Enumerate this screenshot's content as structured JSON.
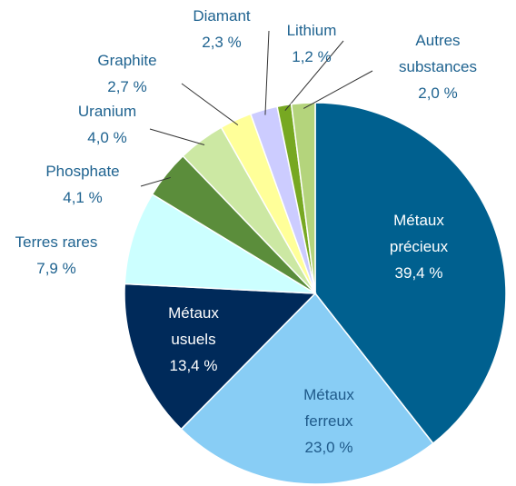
{
  "chart_data": {
    "type": "pie",
    "categories": [
      "Métaux précieux",
      "Métaux ferreux",
      "Métaux usuels",
      "Terres rares",
      "Phosphate",
      "Uranium",
      "Graphite",
      "Diamant",
      "Lithium",
      "Autres substances"
    ],
    "values": [
      39.4,
      23.0,
      13.4,
      7.9,
      4.1,
      4.0,
      2.7,
      2.3,
      1.2,
      2.0
    ],
    "value_labels": [
      "39,4 %",
      "23,0 %",
      "13,4 %",
      "7,9 %",
      "4,1 %",
      "4,0 %",
      "2,7 %",
      "2,3 %",
      "1,2 %",
      "2,0 %"
    ],
    "colors": [
      "#00608f",
      "#88cdf5",
      "#002a5a",
      "#ccffff",
      "#5b8d3b",
      "#cce8a3",
      "#ffff99",
      "#ccccff",
      "#77a822",
      "#b4d47c"
    ]
  }
}
